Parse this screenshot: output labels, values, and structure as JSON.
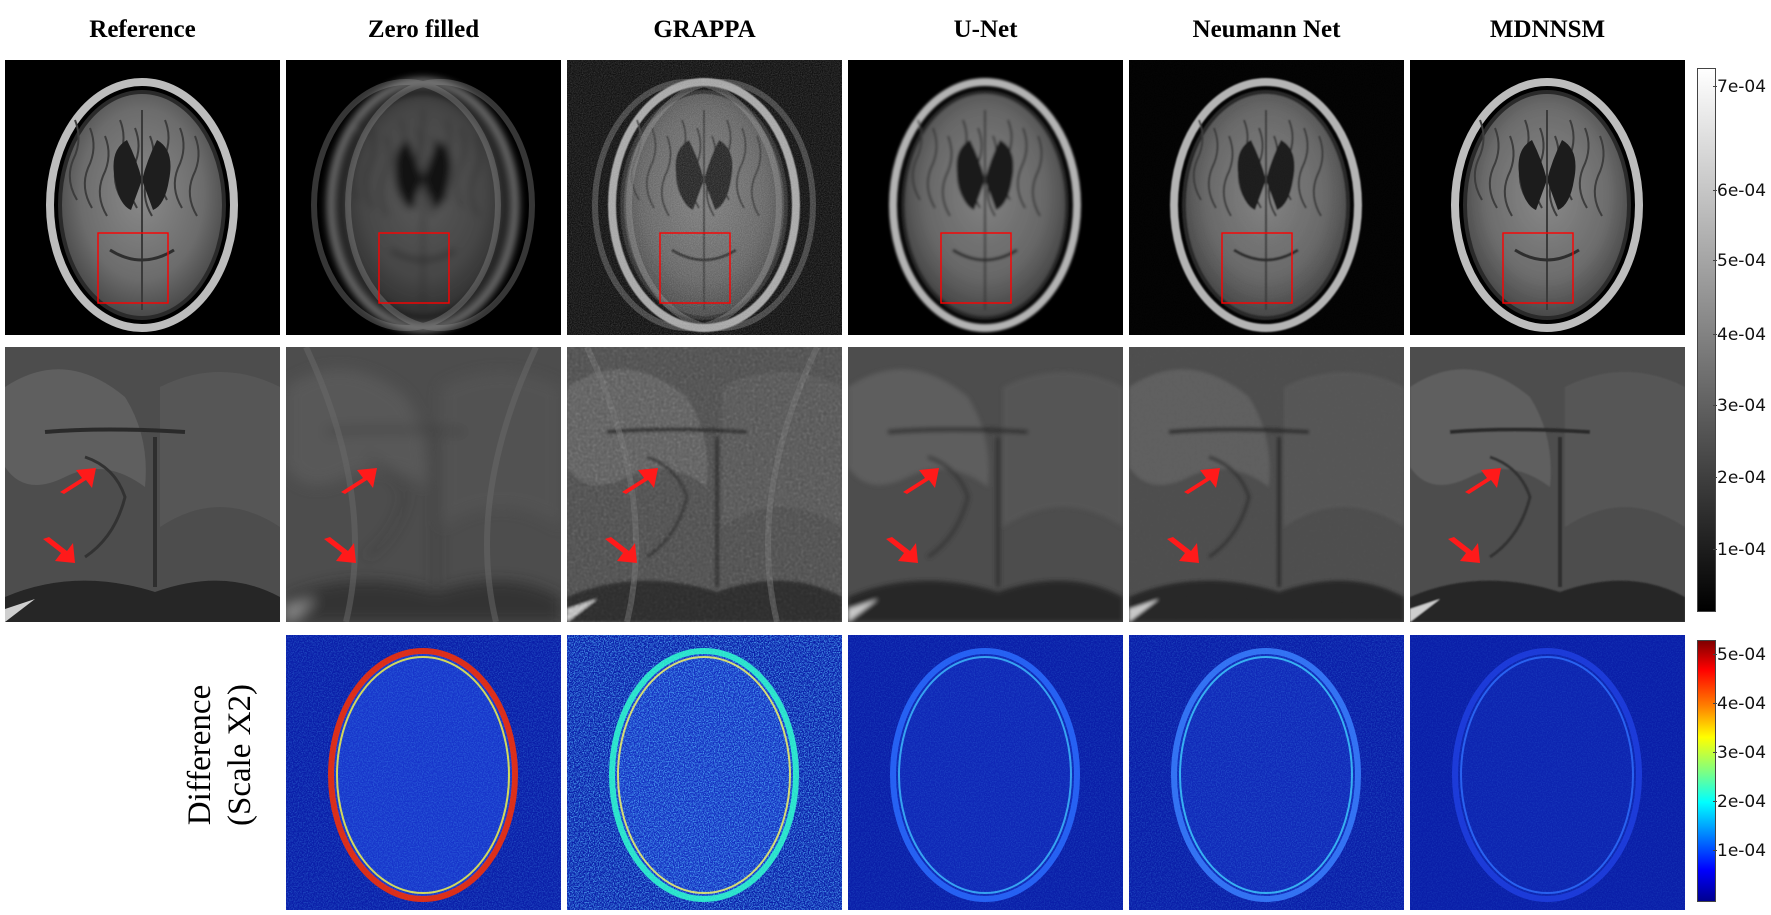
{
  "columns": [
    {
      "key": "ref",
      "title": "Reference",
      "row3": false
    },
    {
      "key": "zf",
      "title": "Zero filled",
      "row3": true
    },
    {
      "key": "grappa",
      "title": "GRAPPA",
      "row3": true
    },
    {
      "key": "unet",
      "title": "U-Net",
      "row3": true
    },
    {
      "key": "neumann",
      "title": "Neumann Net",
      "row3": true
    },
    {
      "key": "mdnnsm",
      "title": "MDNNSM",
      "row3": true
    }
  ],
  "difference_label": {
    "line1": "Difference",
    "line2": "(Scale X2)"
  },
  "colorbars": {
    "grayscale": {
      "ticks": [
        "7e-04",
        "6e-04",
        "5e-04",
        "4e-04",
        "3e-04",
        "2e-04",
        "1e-04"
      ]
    },
    "jet": {
      "ticks": [
        "5e-04",
        "4e-04",
        "3e-04",
        "2e-04",
        "1e-04"
      ]
    }
  },
  "colors": {
    "roi_box": "#ff0000",
    "arrow": "#ff1a1a",
    "diff_background": "#0a1ea8"
  }
}
